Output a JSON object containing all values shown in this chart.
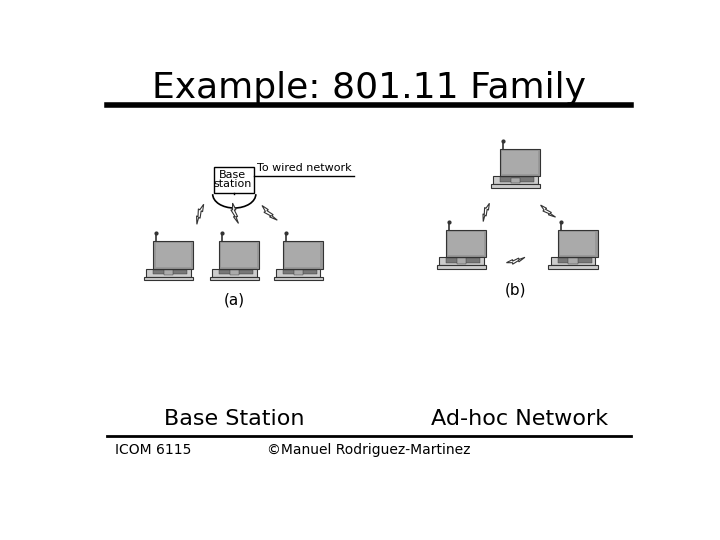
{
  "title": "Example: 801.11 Family",
  "subtitle_left": "Base Station",
  "subtitle_right": "Ad-hoc Network",
  "label_a": "(a)",
  "label_b": "(b)",
  "footer_left": "ICOM 6115",
  "footer_center": "©Manuel Rodriguez-Martinez",
  "bg_color": "#ffffff",
  "text_color": "#000000",
  "title_fontsize": 26,
  "subtitle_fontsize": 16,
  "footer_fontsize": 10,
  "label_fontsize": 11
}
